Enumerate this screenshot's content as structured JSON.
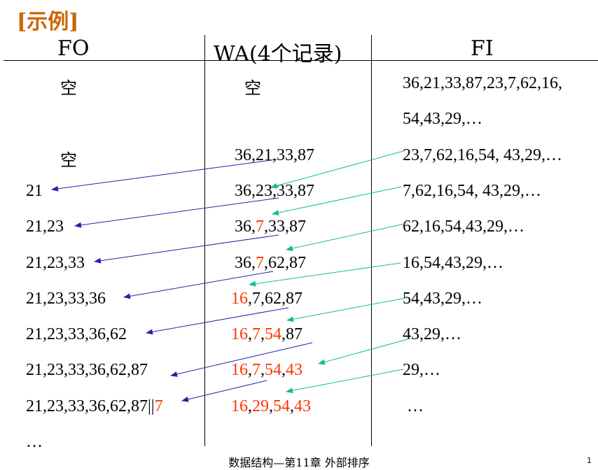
{
  "title": "[示例]",
  "title_color": "#cc6600",
  "highlight_color": "#ff3300",
  "columns": {
    "fo": "FO",
    "wa": "WA(4个记录)",
    "fi": "FI"
  },
  "rows": [
    {
      "fo": [
        {
          "t": "空",
          "hl": false
        }
      ],
      "wa": [
        {
          "t": "空",
          "hl": false
        }
      ],
      "fi": "36,21,33,87,23,7,62,16,"
    },
    {
      "fo": [],
      "wa": [],
      "fi": "54,43,29,…"
    },
    {
      "fo": [
        {
          "t": "空",
          "hl": false
        }
      ],
      "wa": [
        {
          "t": "36,21,33,87",
          "hl": false
        }
      ],
      "fi": "23,7,62,16,54, 43,29,…"
    },
    {
      "fo": [
        {
          "t": "21",
          "hl": false
        }
      ],
      "wa": [
        {
          "t": "36,23,33,87",
          "hl": false
        }
      ],
      "fi": "7,62,16,54, 43,29,…"
    },
    {
      "fo": [
        {
          "t": "21,23",
          "hl": false
        }
      ],
      "wa": [
        {
          "t": "36,",
          "hl": false
        },
        {
          "t": "7",
          "hl": true
        },
        {
          "t": ",33,87",
          "hl": false
        }
      ],
      "fi": "62,16,54,43,29,…"
    },
    {
      "fo": [
        {
          "t": "21,23,33",
          "hl": false
        }
      ],
      "wa": [
        {
          "t": "36,",
          "hl": false
        },
        {
          "t": "7",
          "hl": true
        },
        {
          "t": ",62,87",
          "hl": false
        }
      ],
      "fi": "16,54,43,29,…"
    },
    {
      "fo": [
        {
          "t": "21,23,33,36",
          "hl": false
        }
      ],
      "wa": [
        {
          "t": "16",
          "hl": true
        },
        {
          "t": ",7,62,87",
          "hl": false
        }
      ],
      "fi": "54,43,29,…"
    },
    {
      "fo": [
        {
          "t": "21,23,33,36,62",
          "hl": false
        }
      ],
      "wa": [
        {
          "t": "16",
          "hl": true
        },
        {
          "t": ",",
          "hl": false
        },
        {
          "t": "7",
          "hl": true
        },
        {
          "t": ",",
          "hl": false
        },
        {
          "t": "54",
          "hl": true
        },
        {
          "t": ",87",
          "hl": false
        }
      ],
      "fi": "43,29,…"
    },
    {
      "fo": [
        {
          "t": "21,23,33,36,62,87",
          "hl": false
        }
      ],
      "wa": [
        {
          "t": "16",
          "hl": true
        },
        {
          "t": ",",
          "hl": false
        },
        {
          "t": "7",
          "hl": true
        },
        {
          "t": ",",
          "hl": false
        },
        {
          "t": "54",
          "hl": true
        },
        {
          "t": ",",
          "hl": false
        },
        {
          "t": "43",
          "hl": true
        }
      ],
      "fi": "29,…"
    },
    {
      "fo": [
        {
          "t": "21,23,33,36,62,87||",
          "hl": false
        },
        {
          "t": "7",
          "hl": true
        }
      ],
      "wa": [
        {
          "t": "16",
          "hl": true
        },
        {
          "t": ",",
          "hl": false
        },
        {
          "t": "29",
          "hl": true
        },
        {
          "t": ",",
          "hl": false
        },
        {
          "t": "54",
          "hl": true
        },
        {
          "t": ",",
          "hl": false
        },
        {
          "t": "43",
          "hl": true
        }
      ],
      "fi": "…"
    },
    {
      "fo": [
        {
          "t": "…",
          "hl": false
        }
      ],
      "wa": [],
      "fi": ""
    }
  ],
  "output_arrow_color": "#2222aa",
  "input_arrow_color": "#11bb99",
  "footer": "数据结构—第11章 外部排序",
  "page_number": "1"
}
